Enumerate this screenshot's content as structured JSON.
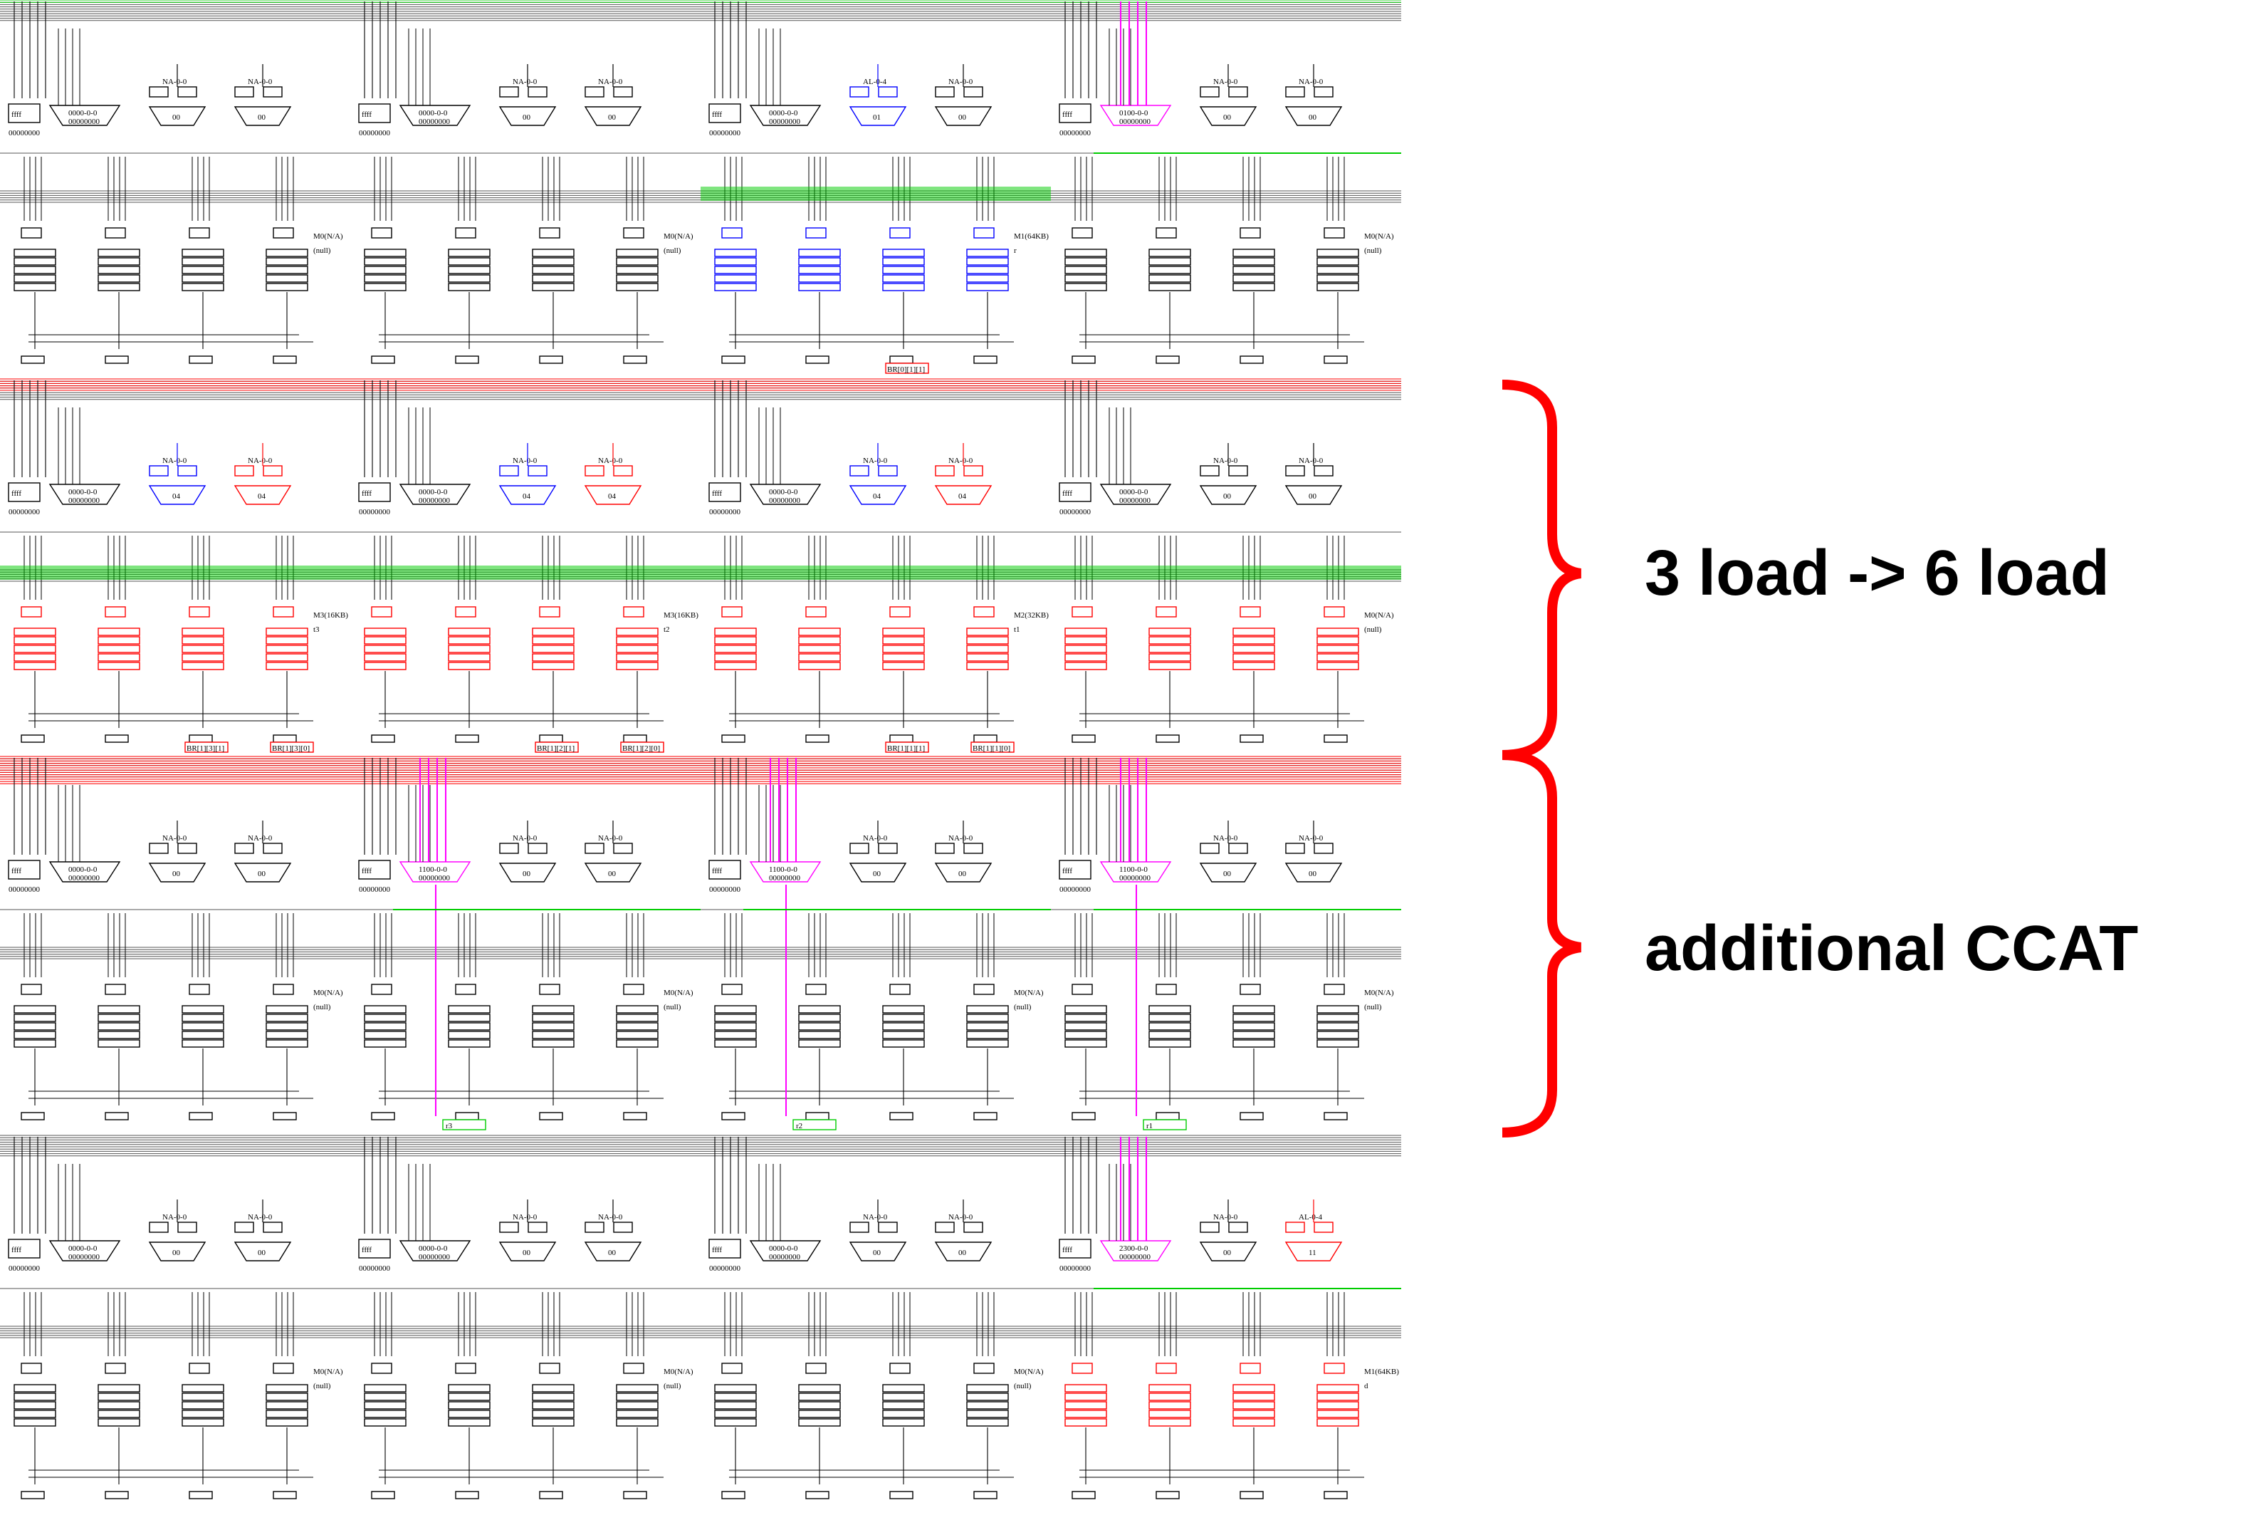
{
  "annotations": {
    "top": "3 load -> 6 load",
    "bottom": "additional CCAT"
  },
  "colors": {
    "wire": "#000000",
    "load": "#ff0000",
    "route": "#0000ff",
    "ccat": "#ff00ff",
    "bus": "#00cc00",
    "bracket": "#ff0000"
  },
  "labels": {
    "ffff": "ffff",
    "zero_reg": "00000000",
    "cfg": "0000-0-0",
    "na": "NA-0-0",
    "al": "AL-0-4",
    "out00": "00",
    "out01": "01",
    "out04": "04",
    "out11": "11"
  },
  "cells": [
    {
      "row": 0,
      "col": 0,
      "mem": "M0(N/A)",
      "sub": "(null)"
    },
    {
      "row": 0,
      "col": 1,
      "mem": "M0(N/A)",
      "sub": "(null)"
    },
    {
      "row": 0,
      "col": 2,
      "mem": "M1(64KB)",
      "sub": "r",
      "ccat_cfg": "",
      "br": [
        "BR[0][1][1]"
      ]
    },
    {
      "row": 0,
      "col": 3,
      "mem": "M0(N/A)",
      "sub": "(null)",
      "ccat_cfg": "0100-0-0"
    },
    {
      "row": 1,
      "col": 0,
      "mem": "M3(16KB)",
      "sub": "t3",
      "br": [
        "BR[1][3][1]",
        "BR[1][3][0]"
      ]
    },
    {
      "row": 1,
      "col": 1,
      "mem": "M3(16KB)",
      "sub": "t2",
      "br": [
        "BR[1][2][1]",
        "BR[1][2][0]"
      ]
    },
    {
      "row": 1,
      "col": 2,
      "mem": "M2(32KB)",
      "sub": "t1",
      "br": [
        "BR[1][1][1]",
        "BR[1][1][0]"
      ]
    },
    {
      "row": 1,
      "col": 3,
      "mem": "M0(N/A)",
      "sub": "(null)"
    },
    {
      "row": 2,
      "col": 0,
      "mem": "M0(N/A)",
      "sub": "(null)"
    },
    {
      "row": 2,
      "col": 1,
      "mem": "M0(N/A)",
      "sub": "(null)",
      "ccat_cfg": "1100-0-0",
      "reg": "r3"
    },
    {
      "row": 2,
      "col": 2,
      "mem": "M0(N/A)",
      "sub": "(null)",
      "ccat_cfg": "1100-0-0",
      "reg": "r2"
    },
    {
      "row": 2,
      "col": 3,
      "mem": "M0(N/A)",
      "sub": "(null)",
      "ccat_cfg": "1100-0-0",
      "reg": "r1"
    },
    {
      "row": 3,
      "col": 0,
      "mem": "M0(N/A)",
      "sub": "(null)"
    },
    {
      "row": 3,
      "col": 1,
      "mem": "M0(N/A)",
      "sub": "(null)"
    },
    {
      "row": 3,
      "col": 2,
      "mem": "M0(N/A)",
      "sub": "(null)"
    },
    {
      "row": 3,
      "col": 3,
      "mem": "M1(64KB)",
      "sub": "d",
      "ccat_cfg": "2300-0-0"
    }
  ]
}
